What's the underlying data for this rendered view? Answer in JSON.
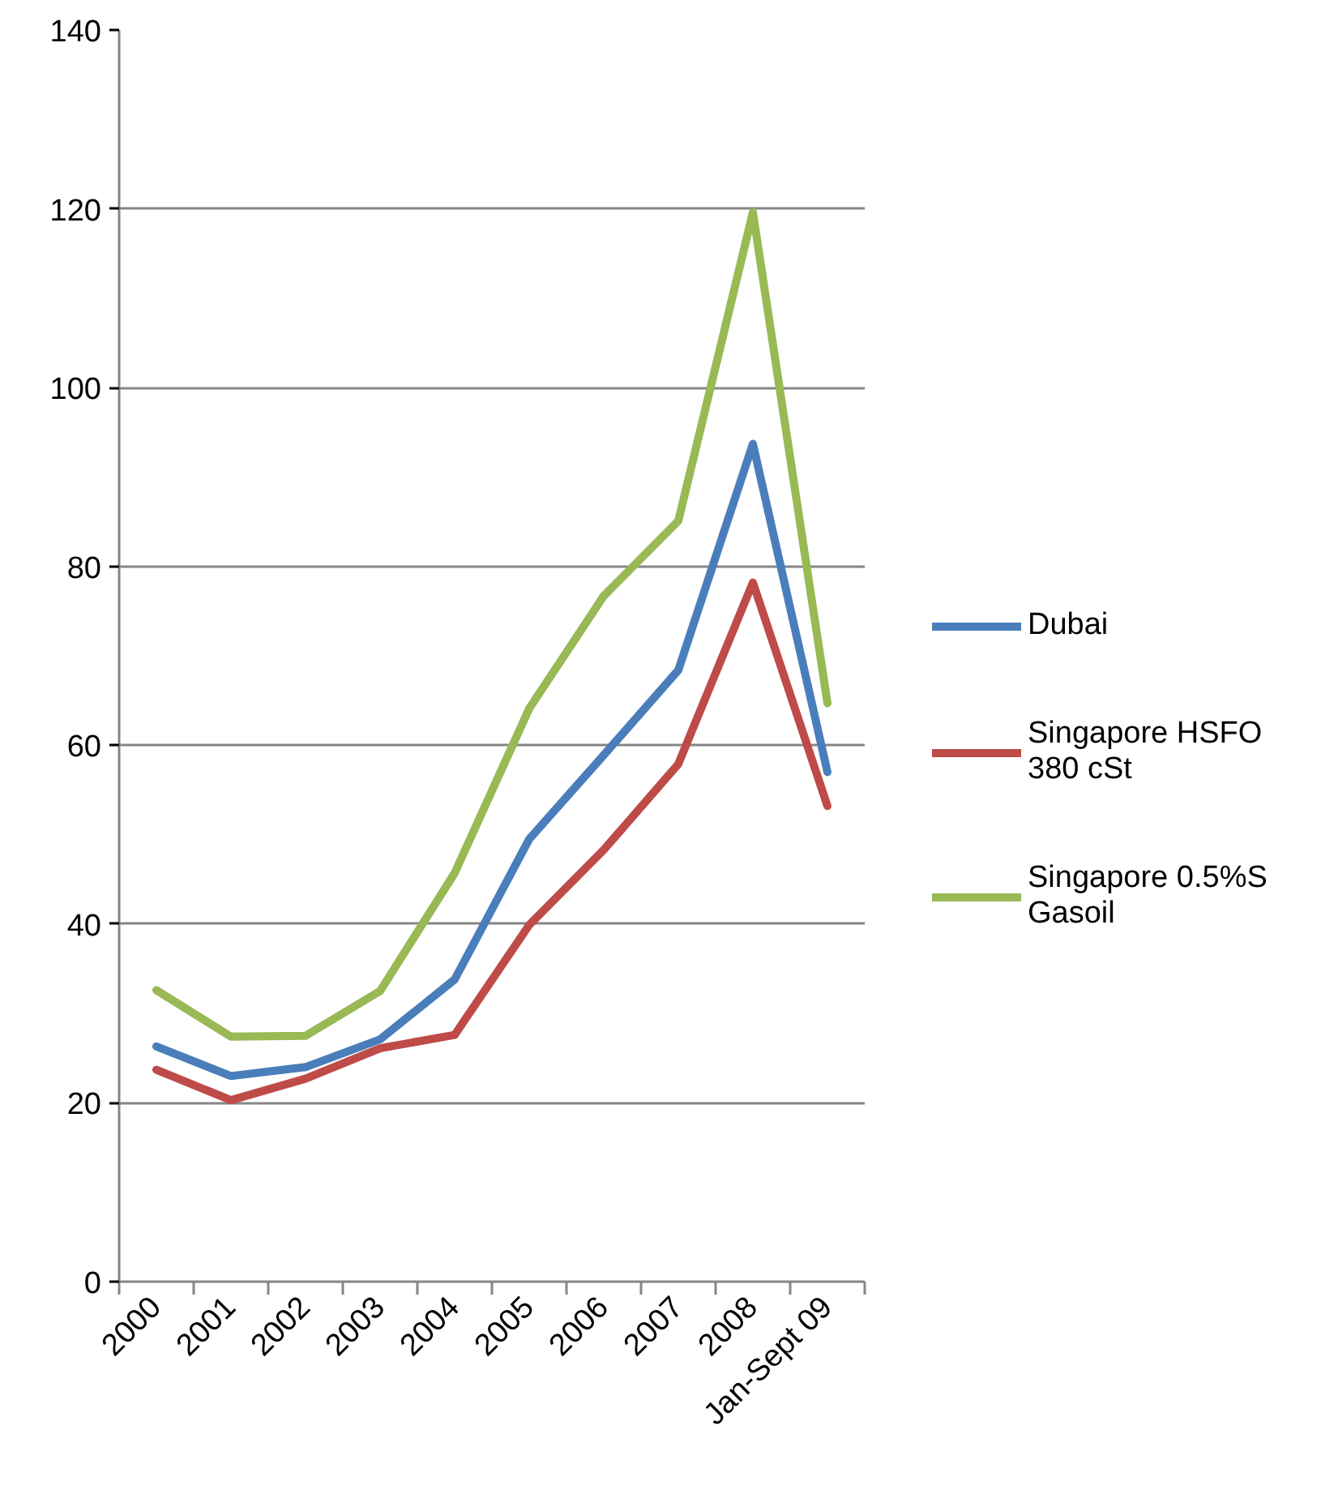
{
  "chart_data": {
    "type": "line",
    "categories": [
      "2000",
      "2001",
      "2002",
      "2003",
      "2004",
      "2005",
      "2006",
      "2007",
      "2008",
      "Jan-Sept 09"
    ],
    "series": [
      {
        "name": "Dubai",
        "color": "#4a7ebb",
        "values": [
          26.3,
          23.0,
          24.0,
          27.1,
          33.8,
          49.5,
          58.9,
          68.4,
          93.7,
          57.0
        ]
      },
      {
        "name": "Singapore HSFO 380 cSt",
        "color": "#be4b48",
        "values": [
          23.7,
          20.3,
          22.7,
          26.1,
          27.6,
          39.9,
          48.3,
          57.9,
          78.2,
          53.2
        ]
      },
      {
        "name": "Singapore 0.5%S Gasoil",
        "color": "#98b954",
        "values": [
          32.6,
          27.4,
          27.5,
          32.5,
          45.7,
          64.1,
          76.7,
          85.1,
          119.6,
          64.7
        ]
      }
    ],
    "ylim": [
      0,
      140
    ],
    "yticks": [
      0,
      20,
      40,
      60,
      80,
      100,
      120,
      140
    ],
    "grid": "y",
    "legend": "right",
    "line_style": "solid"
  }
}
